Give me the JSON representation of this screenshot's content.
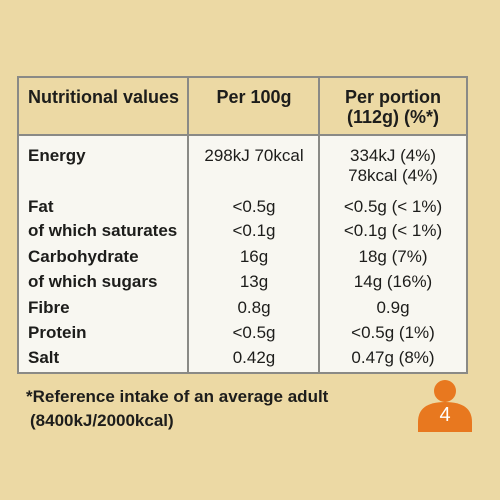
{
  "table": {
    "headers": {
      "nutrient": "Nutritional values",
      "per100": "Per 100g",
      "portion_line1": "Per portion",
      "portion_line2": "(112g) (%*)"
    },
    "rows": [
      {
        "label": "Energy",
        "per100": "298kJ 70kcal",
        "portion": "334kJ (4%)",
        "portion_extra": "78kcal (4%)"
      },
      {
        "label": "Fat",
        "per100": "<0.5g",
        "portion": "<0.5g (< 1%)"
      },
      {
        "label": "of which saturates",
        "per100": "<0.1g",
        "portion": "<0.1g (< 1%)"
      },
      {
        "label": "Carbohydrate",
        "per100": "16g",
        "portion": "18g (7%)"
      },
      {
        "label": "of which sugars",
        "per100": "13g",
        "portion": "14g (16%)"
      },
      {
        "label": "Fibre",
        "per100": "0.8g",
        "portion": "0.9g"
      },
      {
        "label": "Protein",
        "per100": "<0.5g",
        "portion": "<0.5g (1%)"
      },
      {
        "label": "Salt",
        "per100": "0.42g",
        "portion": "0.47g (8%)"
      }
    ]
  },
  "footnote": {
    "line1": "*Reference intake of an average adult",
    "line2": "(8400kJ/2000kcal)"
  },
  "portion_badge": {
    "icon": "person-icon",
    "count": "4",
    "color": "#e8781f"
  }
}
